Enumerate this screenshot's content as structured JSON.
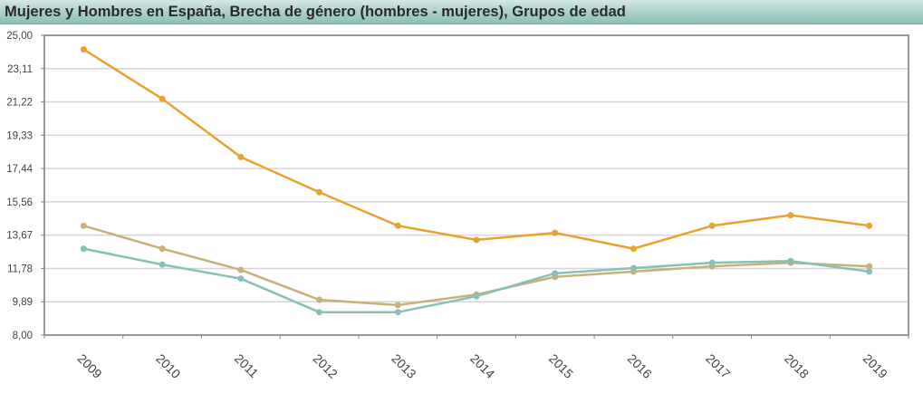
{
  "title": "Mujeres y Hombres en España, Brecha de género (hombres - mujeres), Grupos de edad",
  "chart_data": {
    "type": "line",
    "title": "Mujeres y Hombres en España, Brecha de género (hombres - mujeres), Grupos de edad",
    "xlabel": "",
    "ylabel": "",
    "categories": [
      "2009",
      "2010",
      "2011",
      "2012",
      "2013",
      "2014",
      "2015",
      "2016",
      "2017",
      "2018",
      "2019"
    ],
    "yticks": [
      "25,00",
      "23,11",
      "21,22",
      "19,33",
      "17,44",
      "15,56",
      "13,67",
      "11,78",
      "9,89",
      "8,00"
    ],
    "ylim": [
      8.0,
      25.0
    ],
    "grid": true,
    "series": [
      {
        "color": "#e8a230",
        "values": [
          24.2,
          21.4,
          18.1,
          16.1,
          14.2,
          13.4,
          13.8,
          12.9,
          14.2,
          14.8,
          14.2
        ]
      },
      {
        "color": "#c8b078",
        "values": [
          14.2,
          12.9,
          11.7,
          10.0,
          9.7,
          10.3,
          11.3,
          11.6,
          11.9,
          12.1,
          11.9
        ]
      },
      {
        "color": "#86c0b8",
        "values": [
          12.9,
          12.0,
          11.2,
          9.3,
          9.3,
          10.2,
          11.5,
          11.8,
          12.1,
          12.2,
          11.6
        ]
      }
    ]
  }
}
